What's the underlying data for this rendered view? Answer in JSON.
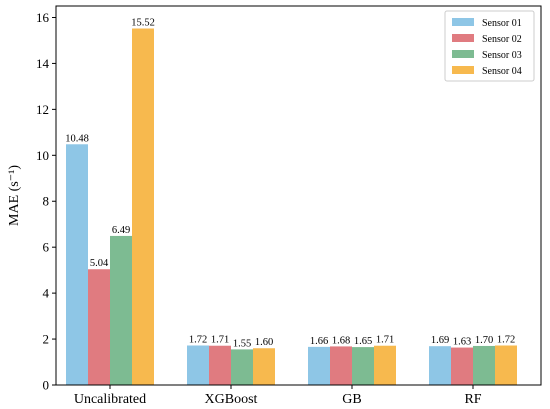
{
  "chart_data": {
    "type": "bar",
    "title": "",
    "xlabel": "",
    "ylabel": "MAE (s⁻¹)",
    "ylim": [
      0,
      16.5
    ],
    "yticks": [
      0,
      2,
      4,
      6,
      8,
      10,
      12,
      14,
      16
    ],
    "grid": false,
    "legend_position": "top-right",
    "categories": [
      "Uncalibrated",
      "XGBoost",
      "GB",
      "RF"
    ],
    "series": [
      {
        "name": "Sensor 01",
        "color": "#8ec6e6",
        "values": [
          10.48,
          1.72,
          1.66,
          1.69
        ],
        "labels": [
          "10.48",
          "1.72",
          "1.66",
          "1.69"
        ]
      },
      {
        "name": "Sensor 02",
        "color": "#e07b80",
        "values": [
          5.04,
          1.71,
          1.68,
          1.63
        ],
        "labels": [
          "5.04",
          "1.71",
          "1.68",
          "1.63"
        ]
      },
      {
        "name": "Sensor 03",
        "color": "#7dbb92",
        "values": [
          6.49,
          1.55,
          1.65,
          1.7
        ],
        "labels": [
          "6.49",
          "1.55",
          "1.65",
          "1.70"
        ]
      },
      {
        "name": "Sensor 04",
        "color": "#f7b94e",
        "values": [
          15.52,
          1.6,
          1.71,
          1.72
        ],
        "labels": [
          "15.52",
          "1.60",
          "1.71",
          "1.72"
        ]
      }
    ]
  }
}
